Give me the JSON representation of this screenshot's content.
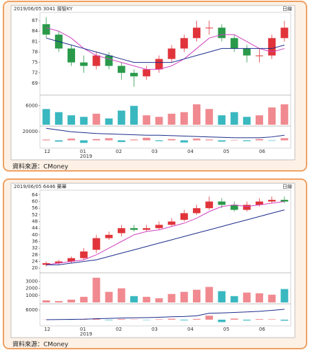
{
  "chart_data": [
    {
      "type": "candlestick",
      "title": "2019/06/05 3041 揚智KY",
      "period": "日線",
      "x_labels": [
        "12",
        "01",
        "02",
        "03",
        "04",
        "05",
        "06"
      ],
      "year_label": "2019",
      "ylim": [
        66,
        89
      ],
      "yticks": [
        87,
        84,
        81,
        78,
        75,
        72,
        69
      ],
      "up_color": "#e0343a",
      "down_color": "#2a9a4a",
      "open": [
        86,
        83,
        79,
        75,
        74,
        77,
        74,
        72,
        71,
        73,
        76,
        79,
        82,
        85,
        85,
        82,
        79,
        77,
        77,
        82
      ],
      "high": [
        88,
        84,
        80,
        77,
        78,
        78,
        75,
        73,
        74,
        77,
        80,
        83,
        87,
        87,
        86,
        83,
        80,
        79,
        83,
        87
      ],
      "low": [
        82,
        78,
        74,
        72,
        73,
        73,
        70,
        68,
        70,
        72,
        75,
        78,
        81,
        83,
        81,
        78,
        75,
        75,
        76,
        81
      ],
      "close": [
        83,
        79,
        75,
        74,
        77,
        74,
        72,
        71,
        73,
        76,
        79,
        82,
        85,
        85,
        82,
        79,
        77,
        77,
        82,
        85
      ],
      "ma": [
        {
          "color": "#d040c0",
          "values": [
            85,
            84,
            82,
            79,
            77,
            76,
            75,
            74,
            73,
            73,
            74,
            76,
            79,
            82,
            83,
            83,
            81,
            79,
            78,
            79
          ]
        },
        {
          "color": "#1a2a8a",
          "values": [
            82,
            81,
            80,
            79,
            78,
            77,
            76,
            75,
            75,
            75,
            75,
            76,
            77,
            78,
            79,
            79,
            79,
            79,
            79,
            80
          ]
        }
      ],
      "volume": {
        "ylim": [
          0,
          9000
        ],
        "yticks": [
          6000
        ],
        "up_color": "#f08a90",
        "down_color": "#3ab8c0",
        "values": [
          5000,
          4000,
          3000,
          2500,
          3500,
          2000,
          4500,
          6000,
          3000,
          2500,
          3500,
          4000,
          6500,
          5000,
          3000,
          4000,
          2500,
          3000,
          5500,
          6500
        ]
      },
      "institutional": {
        "ylim": [
          -15000,
          30000
        ],
        "yticks": [
          20000
        ],
        "up_color": "#f08a90",
        "down_color": "#3ab8c0",
        "line_color": "#1a2a8a",
        "values": [
          2000,
          -3000,
          4000,
          -6000,
          3000,
          5000,
          -4000,
          2000,
          6000,
          -2000,
          3000,
          -5000,
          4000,
          2000,
          -3000,
          1000,
          -2000,
          3000,
          -1000,
          5000
        ],
        "line": [
          28000,
          24000,
          20000,
          18000,
          16000,
          15000,
          14000,
          13000,
          12000,
          12000,
          11000,
          10000,
          9000,
          8000,
          7000,
          6000,
          6000,
          6000,
          8000,
          12000
        ]
      },
      "source": "資料來源：CMoney"
    },
    {
      "type": "candlestick",
      "title": "2019/06/05 6446 藥華",
      "period": "日線",
      "x_labels": [
        "12",
        "01",
        "02",
        "03",
        "04",
        "05",
        "06"
      ],
      "year_label": "2019",
      "ylim": [
        18,
        66
      ],
      "yticks": [
        64,
        60,
        56,
        52,
        48,
        44,
        40,
        36,
        32,
        28,
        24,
        20
      ],
      "up_color": "#e0343a",
      "down_color": "#2a9a4a",
      "open": [
        22,
        23,
        24,
        26,
        31,
        38,
        41,
        44,
        43,
        44,
        46,
        49,
        53,
        56,
        60,
        58,
        55,
        58,
        60,
        61
      ],
      "high": [
        24,
        25,
        27,
        32,
        40,
        42,
        46,
        46,
        46,
        48,
        50,
        55,
        58,
        63,
        62,
        60,
        60,
        62,
        63,
        63
      ],
      "low": [
        21,
        22,
        23,
        25,
        29,
        37,
        39,
        42,
        42,
        43,
        45,
        48,
        52,
        55,
        56,
        54,
        54,
        57,
        59,
        59
      ],
      "close": [
        23,
        24,
        26,
        30,
        38,
        40,
        44,
        43,
        44,
        46,
        48,
        53,
        56,
        60,
        58,
        55,
        58,
        60,
        61,
        60
      ],
      "ma": [
        {
          "color": "#d040c0",
          "values": [
            22,
            23,
            24,
            25,
            28,
            32,
            36,
            40,
            42,
            43,
            45,
            47,
            50,
            54,
            57,
            58,
            57,
            58,
            59,
            60
          ]
        },
        {
          "color": "#1a2a8a",
          "values": [
            22,
            22,
            23,
            24,
            25,
            27,
            29,
            31,
            33,
            35,
            37,
            39,
            41,
            43,
            45,
            47,
            49,
            51,
            53,
            55
          ]
        }
      ],
      "volume": {
        "ylim": [
          0,
          4000
        ],
        "yticks": [
          3000,
          2000,
          1000
        ],
        "up_color": "#f08a90",
        "down_color": "#3ab8c0",
        "values": [
          300,
          200,
          400,
          800,
          3500,
          1500,
          2000,
          900,
          800,
          600,
          1200,
          1500,
          1800,
          2200,
          1600,
          900,
          1400,
          1300,
          1100,
          1900
        ]
      },
      "institutional": {
        "ylim": [
          -3000,
          9000
        ],
        "yticks": [
          6000
        ],
        "up_color": "#f08a90",
        "down_color": "#3ab8c0",
        "line_color": "#1a2a8a",
        "values": [
          100,
          200,
          -100,
          300,
          800,
          -300,
          400,
          200,
          -200,
          300,
          600,
          -400,
          500,
          2500,
          -1500,
          700,
          -500,
          400,
          300,
          -600
        ],
        "line": [
          0,
          100,
          200,
          300,
          600,
          800,
          1000,
          1200,
          1300,
          1500,
          1800,
          2000,
          2400,
          4000,
          4200,
          4500,
          4800,
          5200,
          5800,
          6500
        ]
      },
      "source": "資料來源：CMoney"
    }
  ]
}
